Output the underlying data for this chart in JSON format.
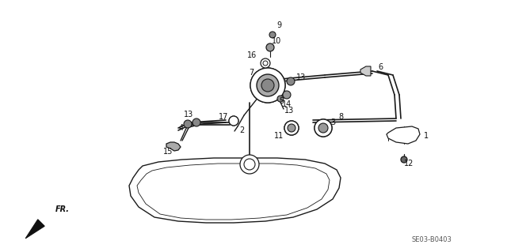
{
  "bg_color": "#ffffff",
  "line_color": "#1a1a1a",
  "label_color": "#111111",
  "code_text": "SE03-B0403",
  "figsize": [
    6.4,
    3.19
  ],
  "dpi": 100
}
